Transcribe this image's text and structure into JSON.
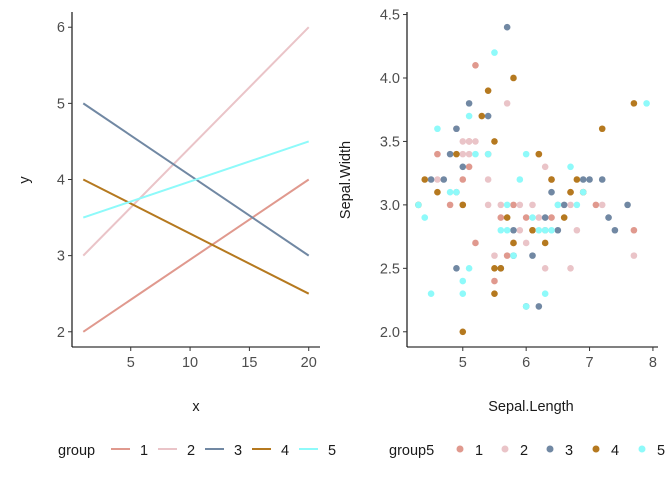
{
  "chart_data": [
    {
      "type": "line",
      "title": "",
      "xlabel": "x",
      "ylabel": "y",
      "xlim": [
        0.05,
        20.95
      ],
      "ylim": [
        1.8,
        6.2
      ],
      "x_ticks": [
        "5",
        "10",
        "15",
        "20"
      ],
      "y_ticks": [
        "2",
        "3",
        "4",
        "5",
        "6"
      ],
      "legend_title": "group",
      "legend_position": "bottom",
      "grid": false,
      "series": [
        {
          "name": "1",
          "color": "#E0998E",
          "x": [
            1,
            20
          ],
          "y": [
            2,
            4
          ]
        },
        {
          "name": "2",
          "color": "#EAC4C8",
          "x": [
            1,
            20
          ],
          "y": [
            3,
            6
          ]
        },
        {
          "name": "3",
          "color": "#7188A3",
          "x": [
            1,
            20
          ],
          "y": [
            5,
            3
          ]
        },
        {
          "name": "4",
          "color": "#B5791F",
          "x": [
            1,
            20
          ],
          "y": [
            4,
            2.5
          ]
        },
        {
          "name": "5",
          "color": "#8EFAFA",
          "x": [
            1,
            20
          ],
          "y": [
            3.5,
            4.5
          ]
        }
      ]
    },
    {
      "type": "scatter",
      "title": "",
      "xlabel": "Sepal.Length",
      "ylabel": "Sepal.Width",
      "xlim": [
        4.12,
        8.08
      ],
      "ylim": [
        1.88,
        4.52
      ],
      "x_ticks": [
        "5",
        "6",
        "7",
        "8"
      ],
      "y_ticks": [
        "2.0",
        "2.5",
        "3.0",
        "3.5",
        "4.0",
        "4.5"
      ],
      "legend_title": "group5",
      "legend_position": "bottom",
      "grid": false,
      "series": [
        {
          "name": "1",
          "color": "#E0998E",
          "points": [
            [
              4.6,
              3.4
            ],
            [
              4.8,
              3.0
            ],
            [
              5.0,
              3.0
            ],
            [
              5.1,
              3.5
            ],
            [
              5.2,
              4.1
            ],
            [
              5.1,
              3.3
            ],
            [
              5.0,
              3.2
            ],
            [
              5.6,
              2.9
            ],
            [
              5.8,
              2.7
            ],
            [
              6.0,
              2.9
            ],
            [
              6.2,
              3.4
            ],
            [
              6.3,
              2.8
            ],
            [
              6.7,
              3.1
            ],
            [
              5.5,
              2.4
            ],
            [
              6.4,
              2.9
            ],
            [
              7.1,
              3.0
            ],
            [
              7.7,
              2.8
            ],
            [
              6.9,
              3.1
            ],
            [
              5.2,
              2.7
            ],
            [
              5.7,
              2.6
            ],
            [
              6.4,
              3.2
            ],
            [
              6.1,
              2.8
            ],
            [
              5.8,
              3.0
            ],
            [
              4.9,
              3.1
            ],
            [
              5.4,
              3.4
            ]
          ]
        },
        {
          "name": "2",
          "color": "#EAC4C8",
          "points": [
            [
              5.0,
              3.5
            ],
            [
              5.1,
              3.5
            ],
            [
              5.2,
              3.5
            ],
            [
              4.9,
              3.6
            ],
            [
              5.4,
              3.2
            ],
            [
              5.7,
              3.8
            ],
            [
              6.1,
              3.0
            ],
            [
              5.6,
              3.0
            ],
            [
              5.9,
              2.8
            ],
            [
              6.3,
              2.5
            ],
            [
              6.7,
              3.0
            ],
            [
              6.8,
              2.8
            ],
            [
              7.7,
              2.6
            ],
            [
              6.3,
              3.3
            ],
            [
              5.5,
              2.6
            ],
            [
              6.0,
              2.7
            ],
            [
              5.4,
              3.0
            ],
            [
              6.5,
              3.0
            ],
            [
              6.7,
              2.5
            ],
            [
              5.0,
              3.4
            ],
            [
              5.9,
              3.0
            ],
            [
              7.2,
              3.0
            ],
            [
              6.2,
              2.9
            ],
            [
              5.1,
              3.4
            ],
            [
              4.6,
              3.2
            ]
          ]
        },
        {
          "name": "3",
          "color": "#7188A3",
          "points": [
            [
              4.7,
              3.2
            ],
            [
              4.9,
              3.6
            ],
            [
              4.9,
              2.5
            ],
            [
              5.1,
              3.8
            ],
            [
              5.0,
              3.3
            ],
            [
              5.4,
              3.7
            ],
            [
              5.7,
              4.4
            ],
            [
              5.6,
              2.5
            ],
            [
              5.8,
              2.8
            ],
            [
              6.0,
              2.2
            ],
            [
              6.2,
              2.2
            ],
            [
              6.3,
              2.9
            ],
            [
              6.4,
              3.1
            ],
            [
              6.5,
              2.8
            ],
            [
              6.6,
              3.0
            ],
            [
              7.0,
              3.2
            ],
            [
              7.2,
              3.2
            ],
            [
              7.4,
              2.8
            ],
            [
              7.6,
              3.0
            ],
            [
              6.9,
              3.2
            ],
            [
              6.1,
              2.6
            ],
            [
              5.8,
              2.6
            ],
            [
              4.5,
              3.2
            ],
            [
              4.8,
              3.4
            ],
            [
              7.3,
              2.9
            ]
          ]
        },
        {
          "name": "4",
          "color": "#B5791F",
          "points": [
            [
              4.3,
              3.0
            ],
            [
              4.4,
              3.2
            ],
            [
              4.9,
              3.4
            ],
            [
              5.0,
              3.0
            ],
            [
              5.0,
              2.0
            ],
            [
              5.3,
              3.7
            ],
            [
              5.4,
              3.9
            ],
            [
              5.5,
              3.5
            ],
            [
              5.8,
              4.0
            ],
            [
              5.8,
              2.7
            ],
            [
              5.5,
              2.5
            ],
            [
              5.5,
              2.3
            ],
            [
              6.1,
              2.8
            ],
            [
              6.3,
              2.7
            ],
            [
              6.4,
              3.2
            ],
            [
              6.6,
              2.9
            ],
            [
              6.7,
              3.1
            ],
            [
              6.9,
              3.1
            ],
            [
              7.2,
              3.6
            ],
            [
              7.7,
              3.8
            ],
            [
              5.6,
              2.5
            ],
            [
              6.2,
              3.4
            ],
            [
              6.8,
              3.2
            ],
            [
              4.6,
              3.1
            ],
            [
              5.7,
              2.9
            ]
          ]
        },
        {
          "name": "5",
          "color": "#8EFAFA",
          "points": [
            [
              4.3,
              3.0
            ],
            [
              4.4,
              2.9
            ],
            [
              4.5,
              2.3
            ],
            [
              4.6,
              3.6
            ],
            [
              4.8,
              3.1
            ],
            [
              4.9,
              3.1
            ],
            [
              5.0,
              2.4
            ],
            [
              5.0,
              2.3
            ],
            [
              5.1,
              2.5
            ],
            [
              5.1,
              3.7
            ],
            [
              5.2,
              3.4
            ],
            [
              5.4,
              3.4
            ],
            [
              5.5,
              4.2
            ],
            [
              5.7,
              3.0
            ],
            [
              5.8,
              2.6
            ],
            [
              5.9,
              3.2
            ],
            [
              6.0,
              3.4
            ],
            [
              6.0,
              2.2
            ],
            [
              6.2,
              2.8
            ],
            [
              6.3,
              2.3
            ],
            [
              6.4,
              2.8
            ],
            [
              6.5,
              3.0
            ],
            [
              6.7,
              3.3
            ],
            [
              6.8,
              3.0
            ],
            [
              7.9,
              3.8
            ],
            [
              6.3,
              2.8
            ],
            [
              5.6,
              2.8
            ],
            [
              6.1,
              2.9
            ],
            [
              6.9,
              3.1
            ],
            [
              5.7,
              2.8
            ]
          ]
        }
      ]
    }
  ]
}
